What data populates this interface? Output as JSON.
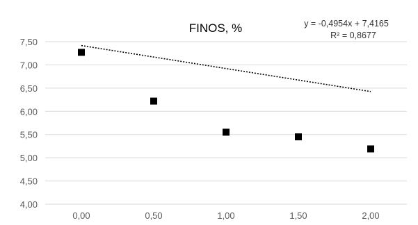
{
  "chart_data": {
    "type": "scatter",
    "title": "FINOS, %",
    "x": [
      0.0,
      0.5,
      1.0,
      1.5,
      2.0
    ],
    "y": [
      7.27,
      6.22,
      5.55,
      5.45,
      5.19
    ],
    "x_tick_labels": [
      "0,00",
      "0,50",
      "1,00",
      "1,50",
      "2,00"
    ],
    "y_tick_labels": [
      "4,00",
      "4,50",
      "5,00",
      "5,50",
      "6,00",
      "6,50",
      "7,00",
      "7,50"
    ],
    "xlim": [
      -0.25,
      2.25
    ],
    "ylim": [
      4.0,
      7.5
    ],
    "grid": "horizontal",
    "legend": "none",
    "trendline": {
      "type": "linear",
      "slope": -0.4954,
      "intercept": 7.4165,
      "equation_label": "y = -0,4954x + 7,4165",
      "r2_label": "R² = 0,8677"
    },
    "colors": {
      "marker": "#000000",
      "trendline": "#000000",
      "grid": "#d9d9d9",
      "axis_text": "#595959"
    }
  }
}
